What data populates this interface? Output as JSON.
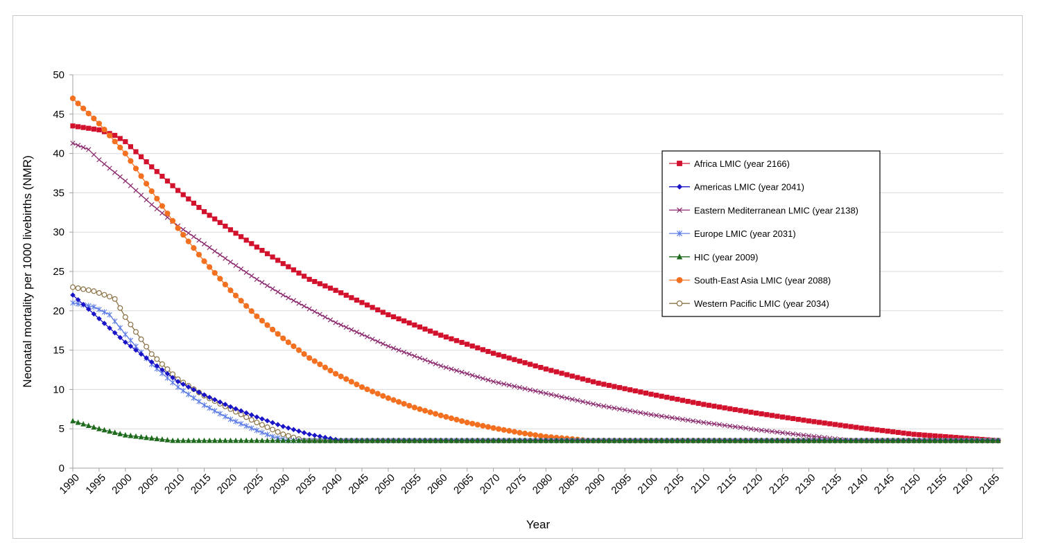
{
  "chart_data": {
    "type": "line",
    "title": "",
    "xlabel": "Year",
    "ylabel": "Neonatal mortality per 1000 livebirths (NMR)",
    "xlim": [
      1990,
      2167
    ],
    "ylim": [
      0,
      50
    ],
    "yticks": [
      0,
      5,
      10,
      15,
      20,
      25,
      30,
      35,
      40,
      45,
      50
    ],
    "xticks": [
      1990,
      1995,
      2000,
      2005,
      2010,
      2015,
      2020,
      2025,
      2030,
      2035,
      2040,
      2045,
      2050,
      2055,
      2060,
      2065,
      2070,
      2075,
      2080,
      2085,
      2090,
      2095,
      2100,
      2105,
      2110,
      2115,
      2120,
      2125,
      2130,
      2135,
      2140,
      2145,
      2150,
      2155,
      2160,
      2165
    ],
    "grid": "horizontal",
    "legend_position": "right",
    "floor": 3.5,
    "series": [
      {
        "name": "Africa LMIC (year 2166)",
        "color": "#d2112c",
        "marker": "square",
        "points": [
          [
            1990,
            43.5
          ],
          [
            1995,
            43.0
          ],
          [
            1998,
            42.3
          ],
          [
            2000,
            41.5
          ],
          [
            2005,
            38.3
          ],
          [
            2010,
            35.3
          ],
          [
            2015,
            32.6
          ],
          [
            2020,
            30.3
          ],
          [
            2025,
            28.1
          ],
          [
            2030,
            26.0
          ],
          [
            2035,
            24.0
          ],
          [
            2040,
            22.6
          ],
          [
            2050,
            19.5
          ],
          [
            2060,
            16.9
          ],
          [
            2070,
            14.6
          ],
          [
            2080,
            12.6
          ],
          [
            2090,
            10.8
          ],
          [
            2100,
            9.4
          ],
          [
            2110,
            8.1
          ],
          [
            2120,
            7.0
          ],
          [
            2130,
            6.0
          ],
          [
            2140,
            5.1
          ],
          [
            2150,
            4.3
          ],
          [
            2160,
            3.8
          ],
          [
            2166,
            3.5
          ]
        ]
      },
      {
        "name": "Americas LMIC (year 2041)",
        "color": "#1a14c8",
        "marker": "diamond",
        "points": [
          [
            1990,
            22.0
          ],
          [
            1995,
            19.0
          ],
          [
            2000,
            16.0
          ],
          [
            2005,
            13.5
          ],
          [
            2010,
            11.0
          ],
          [
            2015,
            9.3
          ],
          [
            2020,
            7.8
          ],
          [
            2025,
            6.5
          ],
          [
            2030,
            5.3
          ],
          [
            2035,
            4.3
          ],
          [
            2041,
            3.5
          ]
        ]
      },
      {
        "name": "Eastern Mediterranean LMIC (year 2138)",
        "color": "#8b2a6e",
        "marker": "x",
        "points": [
          [
            1990,
            41.3
          ],
          [
            1993,
            40.5
          ],
          [
            1995,
            39.2
          ],
          [
            2000,
            36.5
          ],
          [
            2005,
            33.5
          ],
          [
            2010,
            30.8
          ],
          [
            2015,
            28.5
          ],
          [
            2020,
            26.2
          ],
          [
            2025,
            24.0
          ],
          [
            2030,
            22.0
          ],
          [
            2040,
            18.5
          ],
          [
            2050,
            15.5
          ],
          [
            2060,
            13.0
          ],
          [
            2070,
            11.0
          ],
          [
            2080,
            9.5
          ],
          [
            2090,
            8.0
          ],
          [
            2100,
            6.8
          ],
          [
            2110,
            5.8
          ],
          [
            2120,
            4.9
          ],
          [
            2130,
            4.1
          ],
          [
            2138,
            3.5
          ]
        ]
      },
      {
        "name": "Europe LMIC (year 2031)",
        "color": "#5b7be6",
        "marker": "asterisk",
        "points": [
          [
            1990,
            21.0
          ],
          [
            1994,
            20.5
          ],
          [
            1997,
            19.5
          ],
          [
            2000,
            17.0
          ],
          [
            2005,
            13.2
          ],
          [
            2010,
            10.3
          ],
          [
            2015,
            8.0
          ],
          [
            2020,
            6.2
          ],
          [
            2025,
            4.8
          ],
          [
            2028,
            4.0
          ],
          [
            2031,
            3.5
          ]
        ]
      },
      {
        "name": "HIC (year 2009)",
        "color": "#1f6b1d",
        "marker": "triangle",
        "points": [
          [
            1990,
            6.0
          ],
          [
            1995,
            5.0
          ],
          [
            2000,
            4.2
          ],
          [
            2005,
            3.8
          ],
          [
            2009,
            3.5
          ]
        ]
      },
      {
        "name": "South-East Asia LMIC (year 2088)",
        "color": "#f2701f",
        "marker": "circle",
        "points": [
          [
            1990,
            47.0
          ],
          [
            1995,
            43.8
          ],
          [
            2000,
            40.0
          ],
          [
            2005,
            35.2
          ],
          [
            2010,
            30.5
          ],
          [
            2015,
            26.3
          ],
          [
            2020,
            22.6
          ],
          [
            2025,
            19.3
          ],
          [
            2030,
            16.5
          ],
          [
            2035,
            14.0
          ],
          [
            2040,
            12.0
          ],
          [
            2045,
            10.3
          ],
          [
            2050,
            8.9
          ],
          [
            2055,
            7.7
          ],
          [
            2060,
            6.7
          ],
          [
            2065,
            5.8
          ],
          [
            2070,
            5.1
          ],
          [
            2075,
            4.5
          ],
          [
            2080,
            4.0
          ],
          [
            2085,
            3.7
          ],
          [
            2088,
            3.5
          ]
        ]
      },
      {
        "name": "Western Pacific LMIC (year 2034)",
        "color": "#8b7044",
        "marker": "open-circle",
        "points": [
          [
            1990,
            23.0
          ],
          [
            1994,
            22.5
          ],
          [
            1997,
            21.8
          ],
          [
            1998,
            21.5
          ],
          [
            2000,
            19.2
          ],
          [
            2005,
            14.5
          ],
          [
            2010,
            11.3
          ],
          [
            2015,
            9.2
          ],
          [
            2020,
            7.5
          ],
          [
            2025,
            5.8
          ],
          [
            2030,
            4.3
          ],
          [
            2034,
            3.5
          ]
        ]
      }
    ]
  }
}
